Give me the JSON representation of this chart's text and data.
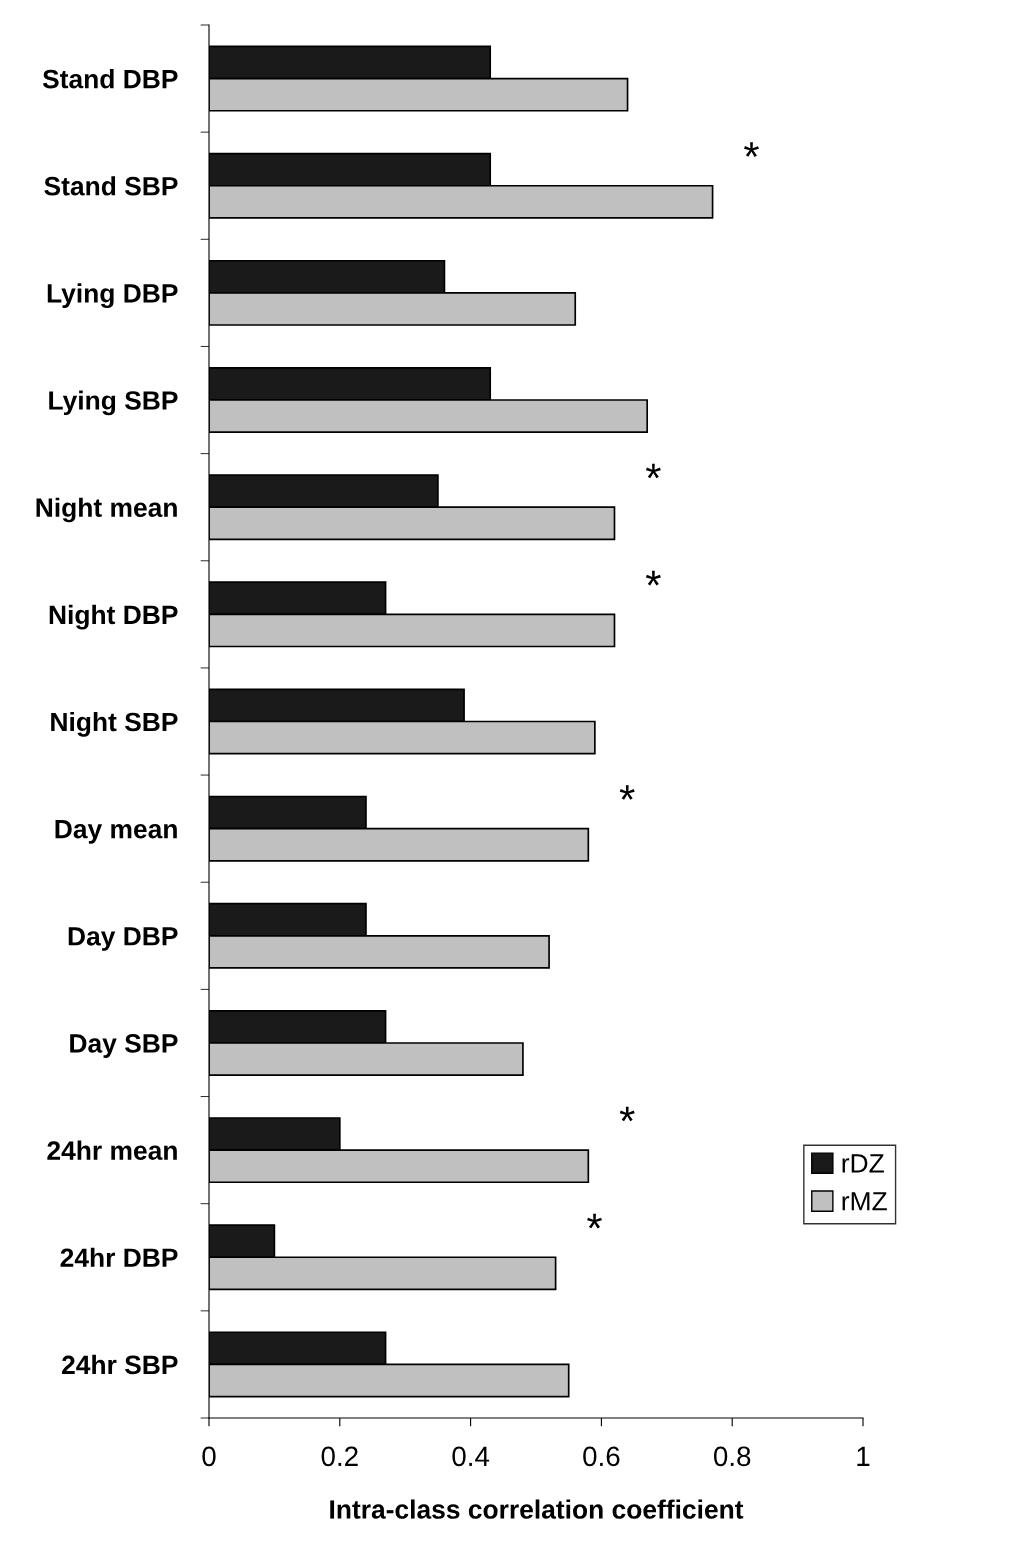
{
  "chart_data": {
    "type": "bar",
    "orientation": "horizontal",
    "xlabel": "Intra-class correlation coefficient",
    "categories": [
      "Stand DBP",
      "Stand SBP",
      "Lying DBP",
      "Lying SBP",
      "Night mean",
      "Night DBP",
      "Night SBP",
      "Day mean",
      "Day DBP",
      "Day SBP",
      "24hr mean",
      "24hr DBP",
      "24hr SBP"
    ],
    "series": [
      {
        "name": "rDZ",
        "color": "#1a1a1a",
        "values": [
          0.43,
          0.43,
          0.36,
          0.43,
          0.35,
          0.27,
          0.39,
          0.24,
          0.24,
          0.27,
          0.2,
          0.1,
          0.27
        ]
      },
      {
        "name": "rMZ",
        "color": "#c0c0c0",
        "values": [
          0.64,
          0.77,
          0.56,
          0.67,
          0.62,
          0.62,
          0.59,
          0.58,
          0.52,
          0.48,
          0.58,
          0.53,
          0.55
        ]
      }
    ],
    "xlim": [
      0,
      1
    ],
    "xticks": [
      0,
      0.2,
      0.4,
      0.6,
      0.8,
      1
    ],
    "grid": false,
    "legend": "lower right",
    "annotations": [
      {
        "text": "*",
        "x": 0.77,
        "y": "Stand SBP"
      },
      {
        "text": "*",
        "x": 0.62,
        "y": "Night mean"
      },
      {
        "text": "*",
        "x": 0.62,
        "y": "Night DBP"
      },
      {
        "text": "*",
        "x": 0.58,
        "y": "Day mean"
      },
      {
        "text": "*",
        "x": 0.58,
        "y": "24hr mean"
      },
      {
        "text": "*",
        "x": 0.53,
        "y": "24hr DBP"
      }
    ]
  }
}
